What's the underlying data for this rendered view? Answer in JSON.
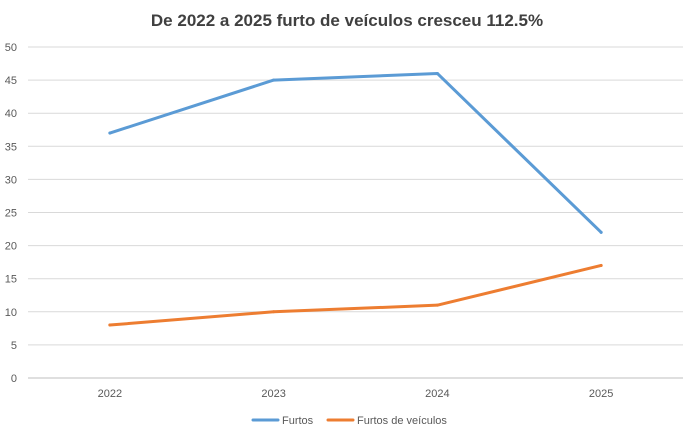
{
  "chart_data": {
    "type": "line",
    "title": "De 2022 a 2025 furto de veículos cresceu 112.5%",
    "xlabel": "",
    "ylabel": "",
    "categories": [
      "2022",
      "2023",
      "2024",
      "2025"
    ],
    "ylim": [
      0,
      50
    ],
    "yticks": [
      0,
      5,
      10,
      15,
      20,
      25,
      30,
      35,
      40,
      45,
      50
    ],
    "grid": true,
    "legend_position": "bottom",
    "series": [
      {
        "name": "Furtos",
        "color": "#5B9BD5",
        "values": [
          37,
          45,
          46,
          22
        ]
      },
      {
        "name": "Furtos de veículos",
        "color": "#ED7D31",
        "values": [
          8,
          10,
          11,
          17
        ]
      }
    ]
  }
}
